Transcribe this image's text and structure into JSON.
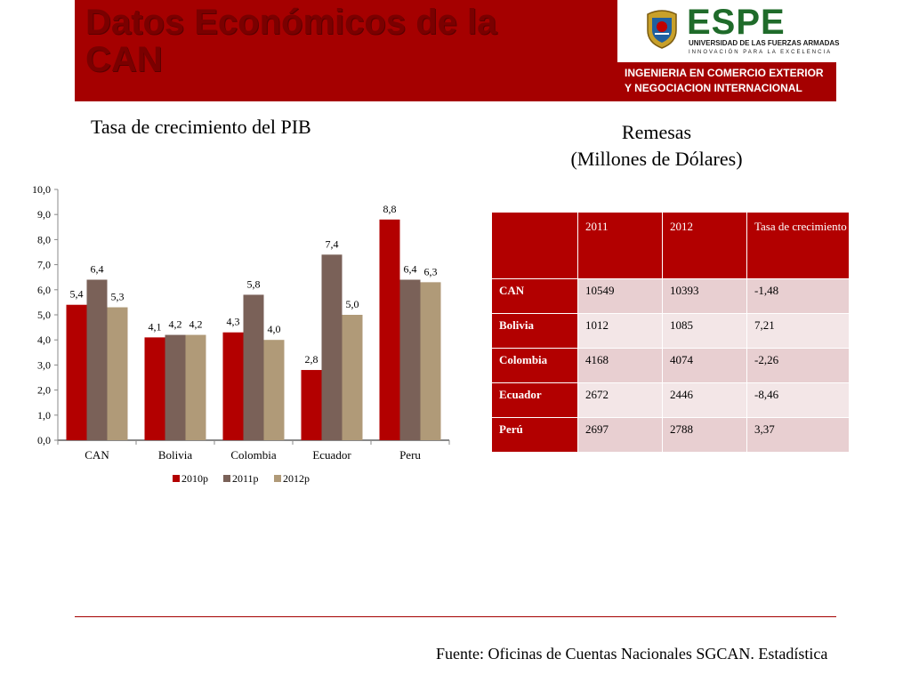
{
  "header": {
    "title": "Datos Económicos de la CAN",
    "logo_text": "ESPE",
    "logo_subtitle": "UNIVERSIDAD DE LAS FUERZAS ARMADAS",
    "logo_tagline": "INNOVACIÓN PARA LA EXCELENCIA",
    "program_line1": "INGENIERIA EN COMERCIO EXTERIOR",
    "program_line2": "Y NEGOCIACION INTERNACIONAL"
  },
  "colors": {
    "brand_red": "#a50000",
    "table_red": "#b20000",
    "s2010": "#b30000",
    "s2011": "#7a6158",
    "s2012": "#b09a78"
  },
  "chart_data": {
    "type": "bar",
    "title": "Tasa de crecimiento del PIB",
    "categories": [
      "CAN",
      "Bolivia",
      "Colombia",
      "Ecuador",
      "Peru"
    ],
    "series": [
      {
        "name": "2010p",
        "values": [
          5.4,
          4.1,
          4.3,
          2.8,
          8.8
        ],
        "labels": [
          "5,4",
          "4,1",
          "4,3",
          "2,8",
          "8,8"
        ]
      },
      {
        "name": "2011p",
        "values": [
          6.4,
          4.2,
          5.8,
          7.4,
          6.4
        ],
        "labels": [
          "6,4",
          "4,2",
          "5,8",
          "7,4",
          "6,4"
        ]
      },
      {
        "name": "2012p",
        "values": [
          5.3,
          4.2,
          4.0,
          5.0,
          6.3
        ],
        "labels": [
          "5,3",
          "4,2",
          "4,0",
          "5,0",
          "6,3"
        ]
      }
    ],
    "ylim": [
      0,
      10
    ],
    "yticks": [
      "0,0",
      "1,0",
      "2,0",
      "3,0",
      "4,0",
      "5,0",
      "6,0",
      "7,0",
      "8,0",
      "9,0",
      "10,0"
    ],
    "legend_position": "bottom",
    "grid": false
  },
  "remesas": {
    "title_line1": "Remesas",
    "title_line2": "(Millones de Dólares)",
    "headers": [
      "",
      "2011",
      "2012",
      "Tasa de crecimiento"
    ],
    "rows": [
      [
        "CAN",
        "10549",
        "10393",
        "-1,48"
      ],
      [
        "Bolivia",
        "1012",
        "1085",
        "7,21"
      ],
      [
        "Colombia",
        "4168",
        "4074",
        "-2,26"
      ],
      [
        "Ecuador",
        "2672",
        "2446",
        "-8,46"
      ],
      [
        "Perú",
        "2697",
        "2788",
        "3,37"
      ]
    ]
  },
  "footer": {
    "source": "Fuente: Oficinas de Cuentas Nacionales SGCAN. Estadística"
  }
}
